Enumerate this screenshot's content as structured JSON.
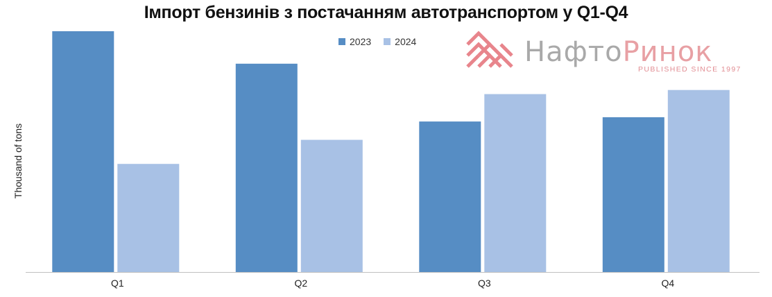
{
  "chart_data": {
    "type": "bar",
    "title": "Імпорт бензинів з постачанням автотранспортом у Q1-Q4",
    "ylabel": "Thousand of tons",
    "xlabel": "",
    "categories": [
      "Q1",
      "Q2",
      "Q3",
      "Q4"
    ],
    "series": [
      {
        "name": "2023",
        "color": "#568dc4",
        "values": [
          100,
          86.5,
          62.5,
          64.3
        ]
      },
      {
        "name": "2024",
        "color": "#a8c1e5",
        "values": [
          44.9,
          54.9,
          73.9,
          75.6
        ]
      }
    ],
    "ylim": [
      0,
      100
    ],
    "grid": false,
    "legend": "top-center"
  },
  "watermark": {
    "name_part1": "Нафто",
    "name_part2": "Ринок",
    "tagline": "PUBLISHED SINCE 1997",
    "logo_color": "#e8858c",
    "text_color": "#a9a9a9"
  }
}
